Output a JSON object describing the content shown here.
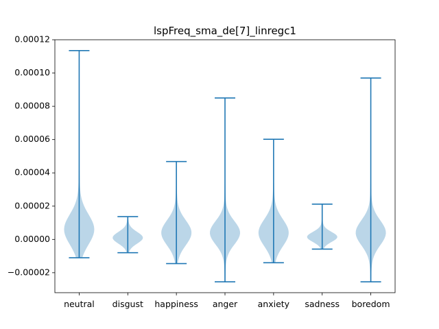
{
  "chart_data": {
    "type": "violin",
    "title": "lspFreq_sma_de[7]_linregc1",
    "xlabel": "",
    "ylabel": "",
    "ylim": [
      -3.2e-05,
      0.00012
    ],
    "grid": false,
    "colors": {
      "body": "#1f77b4",
      "line": "#1f77b4"
    },
    "y_ticks": [
      {
        "value": -2e-05,
        "label": "−0.00002"
      },
      {
        "value": 0.0,
        "label": "0.00000"
      },
      {
        "value": 2e-05,
        "label": "0.00002"
      },
      {
        "value": 4e-05,
        "label": "0.00004"
      },
      {
        "value": 6e-05,
        "label": "0.00006"
      },
      {
        "value": 8e-05,
        "label": "0.00008"
      },
      {
        "value": 0.0001,
        "label": "0.00010"
      },
      {
        "value": 0.00012,
        "label": "0.00012"
      }
    ],
    "categories": [
      "neutral",
      "disgust",
      "happiness",
      "anger",
      "anxiety",
      "sadness",
      "boredom"
    ],
    "series": [
      {
        "category": "neutral",
        "min": -1.1e-05,
        "max": 0.0001135,
        "center": 6e-06,
        "spread": 9e-06
      },
      {
        "category": "disgust",
        "min": -8e-06,
        "max": 1.37e-05,
        "center": 1e-06,
        "spread": 3.5e-06
      },
      {
        "category": "happiness",
        "min": -1.45e-05,
        "max": 4.68e-05,
        "center": 4e-06,
        "spread": 7.5e-06
      },
      {
        "category": "anger",
        "min": -2.55e-05,
        "max": 8.5e-05,
        "center": 4e-06,
        "spread": 7e-06
      },
      {
        "category": "anxiety",
        "min": -1.4e-05,
        "max": 6.02e-05,
        "center": 4e-06,
        "spread": 8e-06
      },
      {
        "category": "sadness",
        "min": -5.8e-06,
        "max": 2.12e-05,
        "center": 1.5e-06,
        "spread": 3e-06
      },
      {
        "category": "boredom",
        "min": -2.55e-05,
        "max": 9.7e-05,
        "center": 4e-06,
        "spread": 7.5e-06
      }
    ]
  }
}
